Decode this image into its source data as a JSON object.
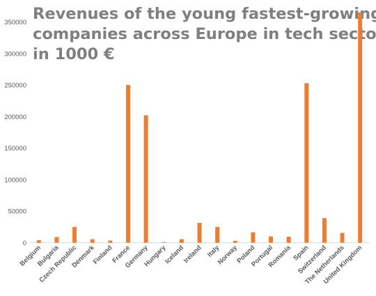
{
  "chart_data": {
    "type": "bar",
    "title_lines": [
      "Revenues of the young fastest-growing",
      "companies across Europe in tech sector,",
      "in 1000 €"
    ],
    "categories": [
      "Belgium",
      "Bulgaria",
      "Czech Republic",
      "Denmark",
      "Finland",
      "France",
      "Germany",
      "Hungary",
      "Iceland",
      "Ireland",
      "Italy",
      "Norway",
      "Poland",
      "Portugal",
      "Romania",
      "Spain",
      "Switzerland",
      "The Netherlands",
      "United Kingdom"
    ],
    "values": [
      4000,
      9000,
      25000,
      5500,
      3500,
      250000,
      202000,
      1000,
      5500,
      31500,
      25000,
      3000,
      16500,
      10000,
      9500,
      253000,
      39000,
      15500,
      365000
    ],
    "ylim": [
      0,
      350000
    ],
    "yticks": [
      "0",
      "50000",
      "100000",
      "150000",
      "200000",
      "250000",
      "300000",
      "350000"
    ],
    "grid": false,
    "xlabel": "",
    "ylabel": "",
    "bar_color": "#ed7d31"
  }
}
